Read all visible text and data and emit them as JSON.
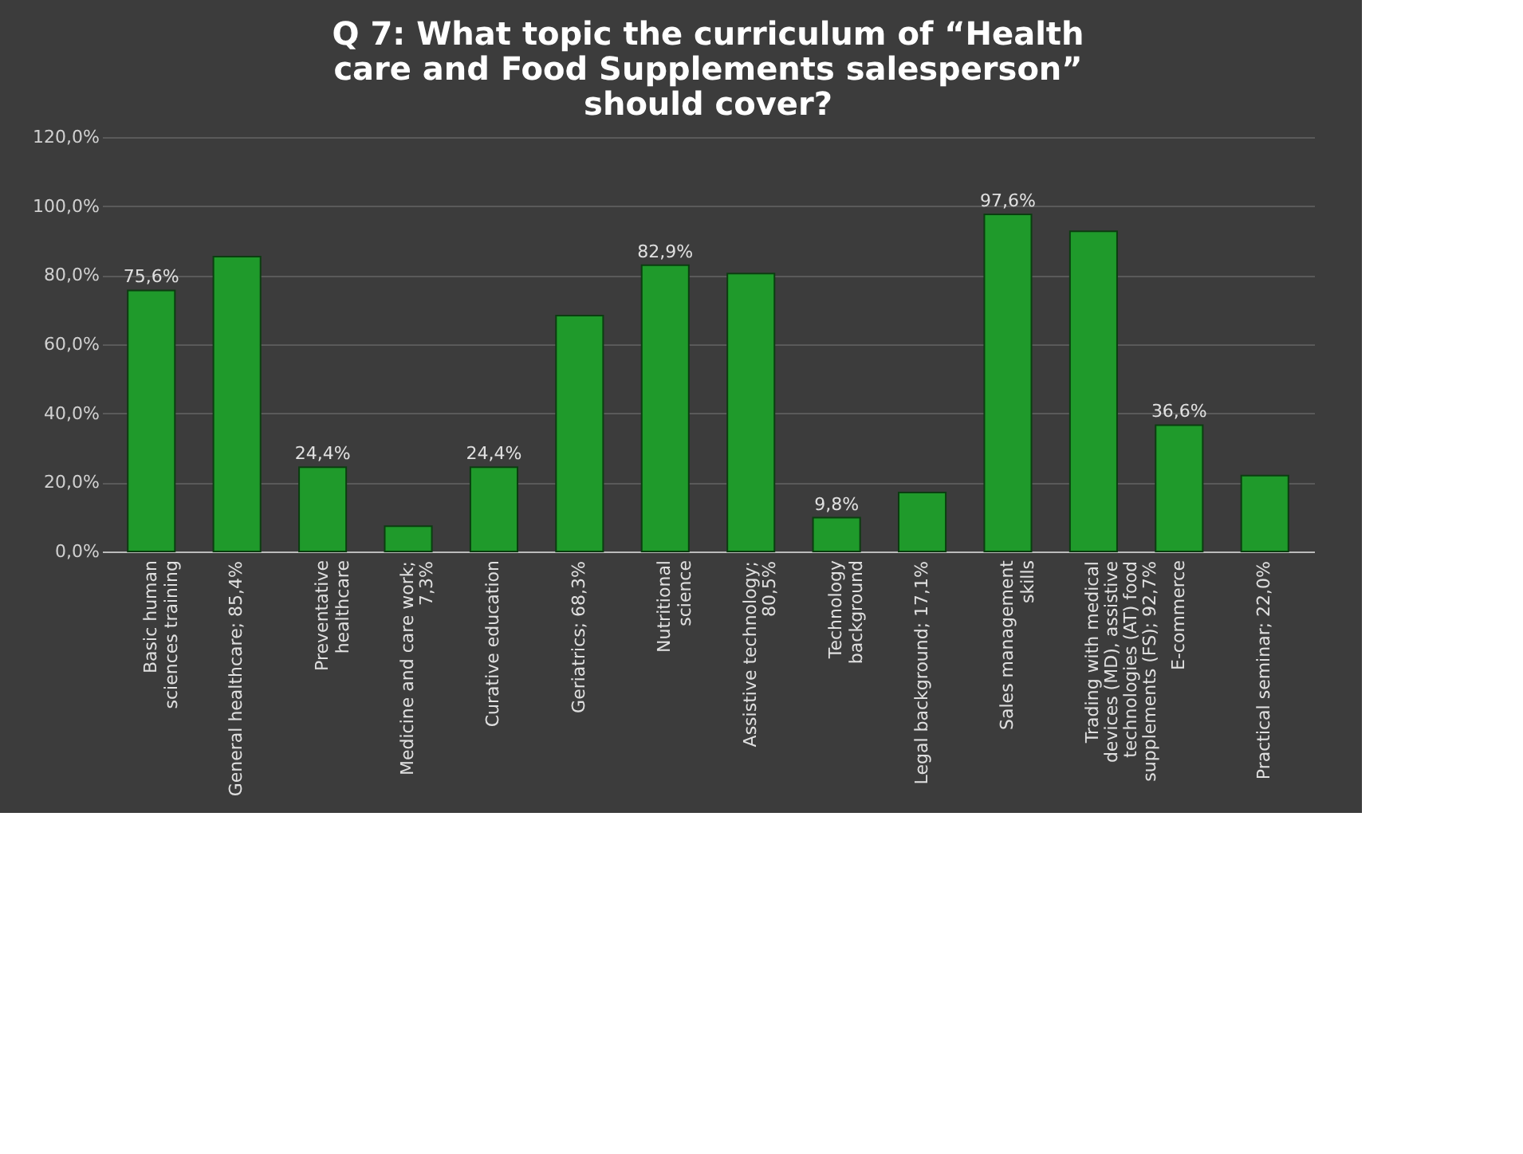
{
  "chart_data": {
    "type": "bar",
    "title": [
      "Q 7: What topic the curriculum of “Health",
      "care and Food Supplements salesperson”",
      "should cover?"
    ],
    "categories": [
      "Basic human sciences training",
      null,
      "Preventative healthcare",
      null,
      "Curative education",
      null,
      "Nutritional science",
      null,
      "Technology background",
      null,
      "Sales management skills",
      null,
      "E-commerce",
      null
    ],
    "values": [
      75.6,
      85.4,
      24.4,
      7.3,
      24.4,
      68.3,
      82.9,
      80.5,
      9.8,
      17.1,
      97.6,
      92.7,
      36.6,
      22.0
    ],
    "value_labels": [
      "75,6%",
      "General healthcare; 85,4%",
      "24,4%",
      "Medicine and care work; 7,3%",
      "24,4%",
      "Geriatrics; 68,3%",
      "82,9%",
      "Assistive technology; 80,5%",
      "9,8%",
      "Legal background; 17,1%",
      "97,6%",
      "Trading with medical devices (MD), assistive technologies (AT) food supplements (FS); 92,7%",
      "36,6%",
      "Practical seminar; 22,0%"
    ],
    "color": "#1f9a2b",
    "ylim": [
      0,
      120
    ],
    "yticks": [
      {
        "value": 0,
        "label": "0,0%"
      },
      {
        "value": 20,
        "label": "20,0%"
      },
      {
        "value": 40,
        "label": "40,0%"
      },
      {
        "value": 60,
        "label": "60,0%"
      },
      {
        "value": 80,
        "label": "80,0%"
      },
      {
        "value": 100,
        "label": "100,0%"
      },
      {
        "value": 120,
        "label": "120,0%"
      }
    ],
    "grid": "y"
  }
}
